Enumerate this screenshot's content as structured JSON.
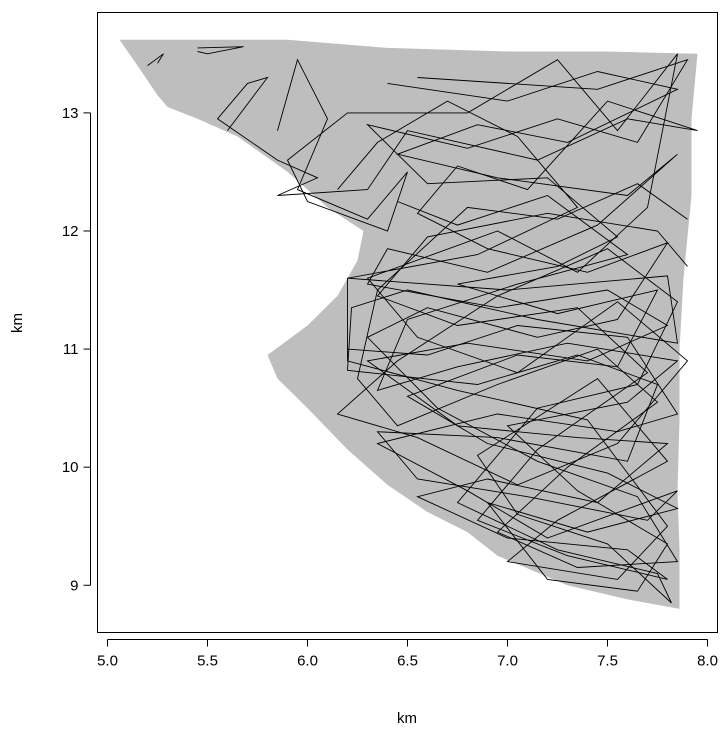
{
  "chart_data": {
    "type": "line",
    "title": "",
    "xlabel": "km",
    "ylabel": "km",
    "xlim": [
      4.95,
      8.05
    ],
    "ylim": [
      8.6,
      13.85
    ],
    "x_ticks": [
      5.0,
      5.5,
      6.0,
      6.5,
      7.0,
      7.5,
      8.0
    ],
    "x_tick_labels": [
      "5.0",
      "5.5",
      "6.0",
      "6.5",
      "7.0",
      "7.5",
      "8.0"
    ],
    "y_ticks": [
      9,
      10,
      11,
      12,
      13
    ],
    "y_tick_labels": [
      "9",
      "10",
      "11",
      "12",
      "13"
    ],
    "grid": false,
    "legend": "none",
    "region": {
      "fill": "#bebebe",
      "polygon": [
        [
          5.06,
          13.62
        ],
        [
          5.9,
          13.62
        ],
        [
          6.4,
          13.55
        ],
        [
          7.0,
          13.52
        ],
        [
          7.5,
          13.52
        ],
        [
          7.95,
          13.5
        ],
        [
          7.92,
          12.95
        ],
        [
          7.92,
          12.3
        ],
        [
          7.88,
          11.6
        ],
        [
          7.86,
          11.0
        ],
        [
          7.86,
          10.4
        ],
        [
          7.85,
          9.8
        ],
        [
          7.86,
          9.3
        ],
        [
          7.86,
          8.8
        ],
        [
          7.6,
          8.88
        ],
        [
          7.3,
          9.0
        ],
        [
          6.95,
          9.25
        ],
        [
          6.8,
          9.45
        ],
        [
          6.6,
          9.62
        ],
        [
          6.4,
          9.85
        ],
        [
          6.2,
          10.15
        ],
        [
          6.0,
          10.5
        ],
        [
          5.85,
          10.75
        ],
        [
          5.8,
          10.95
        ],
        [
          6.0,
          11.2
        ],
        [
          6.15,
          11.45
        ],
        [
          6.25,
          11.75
        ],
        [
          6.28,
          12.0
        ],
        [
          6.1,
          12.2
        ],
        [
          5.9,
          12.5
        ],
        [
          5.65,
          12.8
        ],
        [
          5.45,
          12.95
        ],
        [
          5.3,
          13.05
        ],
        [
          5.25,
          13.15
        ],
        [
          5.15,
          13.4
        ],
        [
          5.06,
          13.62
        ]
      ]
    },
    "series": [
      {
        "color": "#000000",
        "description_of_paths": "dense random-walk movement tracks within the grey region",
        "paths": [
          [
            [
              5.45,
              13.55
            ],
            [
              5.68,
              13.56
            ],
            [
              5.5,
              13.5
            ],
            [
              5.45,
              13.52
            ]
          ],
          [
            [
              5.2,
              13.4
            ],
            [
              5.28,
              13.5
            ],
            [
              5.25,
              13.42
            ]
          ],
          [
            [
              5.85,
              12.85
            ],
            [
              5.95,
              13.45
            ],
            [
              6.1,
              12.95
            ],
            [
              5.95,
              12.35
            ],
            [
              6.3,
              12.1
            ],
            [
              6.5,
              12.5
            ],
            [
              6.4,
              12.0
            ],
            [
              6.0,
              12.25
            ],
            [
              5.9,
              12.6
            ],
            [
              6.2,
              13.0
            ],
            [
              6.8,
              13.0
            ],
            [
              7.25,
              13.45
            ],
            [
              7.55,
              12.85
            ],
            [
              7.85,
              13.5
            ],
            [
              7.7,
              12.2
            ],
            [
              7.35,
              11.65
            ],
            [
              6.95,
              12.0
            ],
            [
              6.3,
              11.6
            ],
            [
              6.55,
              11.1
            ],
            [
              7.05,
              10.8
            ],
            [
              7.55,
              11.4
            ],
            [
              7.9,
              10.9
            ],
            [
              7.55,
              10.2
            ],
            [
              7.05,
              9.85
            ],
            [
              6.55,
              10.25
            ],
            [
              6.15,
              10.45
            ],
            [
              6.45,
              10.9
            ],
            [
              6.95,
              11.45
            ],
            [
              7.5,
              11.85
            ],
            [
              7.85,
              11.4
            ],
            [
              7.65,
              10.7
            ],
            [
              7.15,
              10.5
            ],
            [
              6.75,
              9.7
            ],
            [
              7.25,
              9.3
            ],
            [
              7.75,
              9.1
            ],
            [
              7.82,
              8.85
            ],
            [
              7.5,
              9.35
            ],
            [
              7.05,
              9.6
            ],
            [
              6.85,
              10.1
            ],
            [
              7.45,
              10.75
            ],
            [
              7.8,
              10.05
            ],
            [
              7.25,
              9.55
            ],
            [
              7.0,
              9.2
            ],
            [
              7.55,
              9.05
            ],
            [
              7.8,
              9.5
            ],
            [
              7.4,
              10.4
            ],
            [
              6.75,
              10.65
            ],
            [
              6.2,
              10.9
            ],
            [
              6.2,
              11.6
            ],
            [
              6.85,
              11.8
            ],
            [
              7.35,
              12.2
            ],
            [
              7.05,
              12.8
            ],
            [
              6.7,
              13.1
            ],
            [
              6.35,
              12.75
            ],
            [
              6.15,
              12.35
            ]
          ],
          [
            [
              5.6,
              12.85
            ],
            [
              5.8,
              13.3
            ],
            [
              5.7,
              13.25
            ],
            [
              5.55,
              12.95
            ],
            [
              5.85,
              12.6
            ],
            [
              6.05,
              12.45
            ],
            [
              5.85,
              12.3
            ],
            [
              6.3,
              12.35
            ],
            [
              6.5,
              12.85
            ],
            [
              7.15,
              12.6
            ],
            [
              7.6,
              12.95
            ],
            [
              7.95,
              12.85
            ],
            [
              7.5,
              13.1
            ],
            [
              7.1,
              12.35
            ],
            [
              6.75,
              12.55
            ],
            [
              6.55,
              12.15
            ],
            [
              6.9,
              11.85
            ],
            [
              7.4,
              11.65
            ],
            [
              7.8,
              11.9
            ],
            [
              7.55,
              11.25
            ],
            [
              7.15,
              11.1
            ],
            [
              6.6,
              11.35
            ],
            [
              6.3,
              11.1
            ],
            [
              6.65,
              10.5
            ],
            [
              7.15,
              10.05
            ],
            [
              7.65,
              9.75
            ],
            [
              7.85,
              9.2
            ],
            [
              7.35,
              9.15
            ],
            [
              6.95,
              9.45
            ],
            [
              7.3,
              10.0
            ],
            [
              7.75,
              10.55
            ],
            [
              7.45,
              11.0
            ],
            [
              6.95,
              10.7
            ],
            [
              6.45,
              10.35
            ],
            [
              6.25,
              10.75
            ],
            [
              6.35,
              11.5
            ],
            [
              6.8,
              12.2
            ],
            [
              7.25,
              12.1
            ],
            [
              7.65,
              12.4
            ],
            [
              7.9,
              12.1
            ]
          ],
          [
            [
              6.2,
              11.6
            ],
            [
              7.0,
              11.5
            ],
            [
              7.8,
              11.62
            ],
            [
              7.85,
              11.05
            ],
            [
              7.15,
              11.25
            ],
            [
              6.5,
              11.5
            ],
            [
              6.22,
              11.35
            ],
            [
              6.2,
              10.82
            ],
            [
              6.85,
              10.7
            ],
            [
              7.35,
              10.95
            ],
            [
              7.75,
              10.7
            ],
            [
              7.6,
              10.05
            ],
            [
              6.95,
              10.25
            ],
            [
              6.35,
              10.3
            ],
            [
              6.55,
              9.9
            ],
            [
              7.1,
              9.75
            ],
            [
              7.7,
              9.55
            ],
            [
              7.85,
              9.8
            ],
            [
              7.2,
              9.4
            ],
            [
              6.8,
              9.8
            ],
            [
              6.35,
              10.2
            ],
            [
              6.95,
              10.45
            ],
            [
              7.55,
              10.3
            ],
            [
              7.85,
              10.45
            ],
            [
              7.6,
              11.1
            ],
            [
              7.05,
              11.2
            ],
            [
              6.6,
              10.95
            ],
            [
              6.2,
              11.0
            ]
          ],
          [
            [
              6.4,
              13.25
            ],
            [
              7.0,
              13.1
            ],
            [
              7.45,
              13.35
            ],
            [
              7.85,
              13.2
            ],
            [
              7.3,
              12.75
            ],
            [
              6.85,
              12.9
            ],
            [
              6.45,
              12.65
            ],
            [
              6.95,
              12.45
            ],
            [
              7.6,
              12.3
            ],
            [
              7.85,
              12.65
            ],
            [
              7.45,
              12.05
            ],
            [
              6.9,
              11.65
            ],
            [
              6.4,
              11.85
            ],
            [
              6.3,
              11.55
            ],
            [
              6.95,
              11.35
            ],
            [
              7.5,
              11.5
            ],
            [
              7.8,
              11.2
            ],
            [
              7.4,
              10.9
            ],
            [
              6.8,
              11.05
            ],
            [
              6.3,
              10.9
            ],
            [
              6.75,
              10.35
            ],
            [
              7.35,
              10.25
            ],
            [
              7.8,
              10.2
            ],
            [
              7.45,
              9.7
            ],
            [
              6.9,
              9.9
            ],
            [
              6.55,
              9.75
            ],
            [
              7.0,
              9.4
            ],
            [
              7.6,
              9.3
            ],
            [
              7.8,
              9.05
            ],
            [
              7.3,
              9.25
            ],
            [
              6.85,
              9.55
            ],
            [
              7.15,
              10.15
            ],
            [
              7.7,
              10.8
            ],
            [
              7.35,
              11.35
            ],
            [
              6.75,
              11.2
            ],
            [
              6.35,
              11.45
            ],
            [
              6.6,
              11.95
            ],
            [
              7.2,
              12.15
            ],
            [
              7.75,
              12.0
            ],
            [
              7.9,
              11.7
            ]
          ],
          [
            [
              6.55,
              13.3
            ],
            [
              7.45,
              13.2
            ],
            [
              7.9,
              13.45
            ],
            [
              7.65,
              12.75
            ],
            [
              7.25,
              12.95
            ],
            [
              6.8,
              12.7
            ],
            [
              6.3,
              12.9
            ],
            [
              6.6,
              12.4
            ],
            [
              7.2,
              12.45
            ],
            [
              7.55,
              11.95
            ],
            [
              7.25,
              11.7
            ],
            [
              6.75,
              11.55
            ],
            [
              7.25,
              11.3
            ],
            [
              7.75,
              11.5
            ],
            [
              7.55,
              10.85
            ],
            [
              7.05,
              10.95
            ],
            [
              6.5,
              10.6
            ],
            [
              6.9,
              10.2
            ],
            [
              7.5,
              9.95
            ],
            [
              7.85,
              9.65
            ],
            [
              7.4,
              9.45
            ],
            [
              6.9,
              9.7
            ],
            [
              7.2,
              9.05
            ],
            [
              7.65,
              8.95
            ],
            [
              7.8,
              9.35
            ],
            [
              7.35,
              9.8
            ],
            [
              7.0,
              10.35
            ],
            [
              7.6,
              10.55
            ],
            [
              7.85,
              10.9
            ],
            [
              7.3,
              11.05
            ],
            [
              6.75,
              10.85
            ],
            [
              6.35,
              10.65
            ],
            [
              6.5,
              11.25
            ],
            [
              7.05,
              11.55
            ],
            [
              7.6,
              11.8
            ],
            [
              7.2,
              12.3
            ],
            [
              6.75,
              12.05
            ],
            [
              6.45,
              12.25
            ]
          ]
        ]
      }
    ]
  }
}
